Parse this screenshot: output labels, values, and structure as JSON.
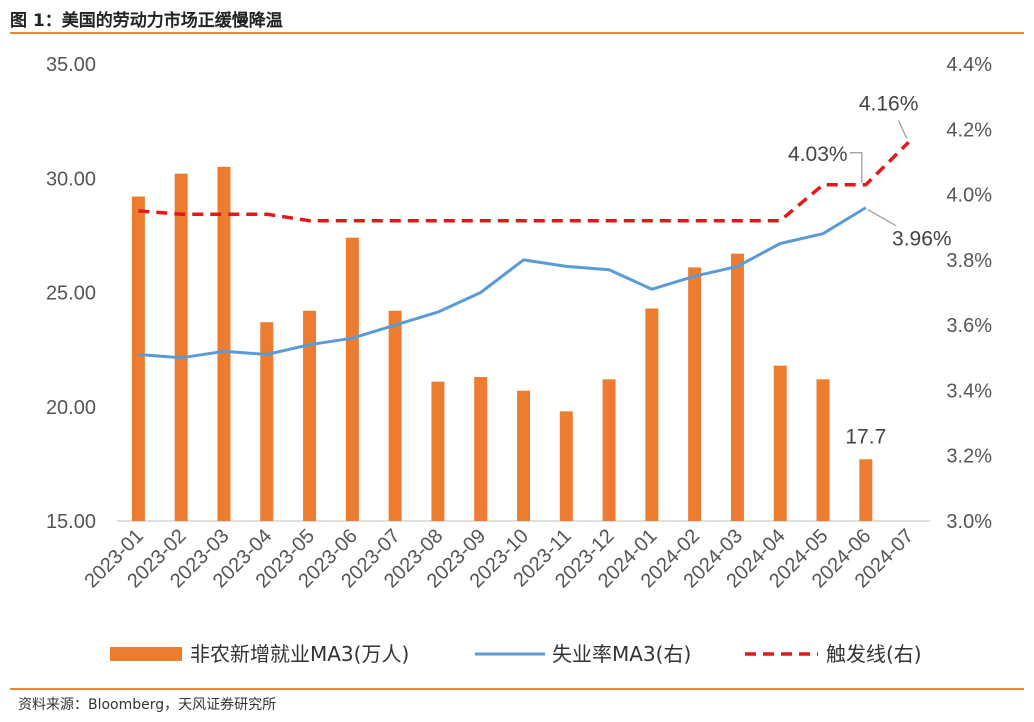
{
  "header": {
    "title": "图 1：美国的劳动力市场正缓慢降温"
  },
  "footer": {
    "source": "资料来源：Bloomberg，天风证券研究所"
  },
  "colors": {
    "bars": "#EC7C30",
    "unemployment": "#5B9BD5",
    "trigger": "#E0191A",
    "accent": "#E8873A"
  },
  "chart_data": {
    "type": "bar",
    "title": "",
    "categories": [
      "2023-01",
      "2023-02",
      "2023-03",
      "2023-04",
      "2023-05",
      "2023-06",
      "2023-07",
      "2023-08",
      "2023-09",
      "2023-10",
      "2023-11",
      "2023-12",
      "2024-01",
      "2024-02",
      "2024-03",
      "2024-04",
      "2024-05",
      "2024-06",
      "2024-07"
    ],
    "left_axis": {
      "ylim": [
        15,
        35
      ],
      "ticks": [
        "15.00",
        "20.00",
        "25.00",
        "30.00",
        "35.00"
      ],
      "tick_values": [
        15,
        20,
        25,
        30,
        35
      ]
    },
    "right_axis": {
      "ylim": [
        3.0,
        4.4
      ],
      "ticks": [
        "3.0%",
        "3.2%",
        "3.4%",
        "3.6%",
        "3.8%",
        "4.0%",
        "4.2%",
        "4.4%"
      ],
      "tick_values": [
        3.0,
        3.2,
        3.4,
        3.6,
        3.8,
        4.0,
        4.2,
        4.4
      ]
    },
    "series": [
      {
        "name": "非农新增就业MA3(万人)",
        "type": "bar",
        "axis": "left",
        "values": [
          29.2,
          30.2,
          30.5,
          23.7,
          24.2,
          27.4,
          24.2,
          21.1,
          21.3,
          20.7,
          19.8,
          21.2,
          24.3,
          26.1,
          26.7,
          21.8,
          21.2,
          17.7,
          null
        ]
      },
      {
        "name": "失业率MA3(右)",
        "type": "line",
        "axis": "right",
        "values": [
          3.51,
          3.5,
          3.52,
          3.51,
          3.54,
          3.56,
          3.6,
          3.64,
          3.7,
          3.8,
          3.78,
          3.77,
          3.71,
          3.75,
          3.78,
          3.85,
          3.88,
          3.96,
          null
        ]
      },
      {
        "name": "触发线(右)",
        "type": "line",
        "axis": "right",
        "dashed": true,
        "values": [
          3.95,
          3.94,
          3.94,
          3.94,
          3.92,
          3.92,
          3.92,
          3.92,
          3.92,
          3.92,
          3.92,
          3.92,
          3.92,
          3.92,
          3.92,
          3.92,
          4.03,
          4.03,
          4.16
        ]
      }
    ],
    "annotations": [
      {
        "text": "17.7",
        "series": 0,
        "index": 17
      },
      {
        "text": "3.96%",
        "series": 1,
        "index": 17
      },
      {
        "text": "4.03%",
        "series": 2,
        "index": 17
      },
      {
        "text": "4.16%",
        "series": 2,
        "index": 18
      }
    ],
    "legend": {
      "placement": "bottom"
    },
    "grid": false
  }
}
